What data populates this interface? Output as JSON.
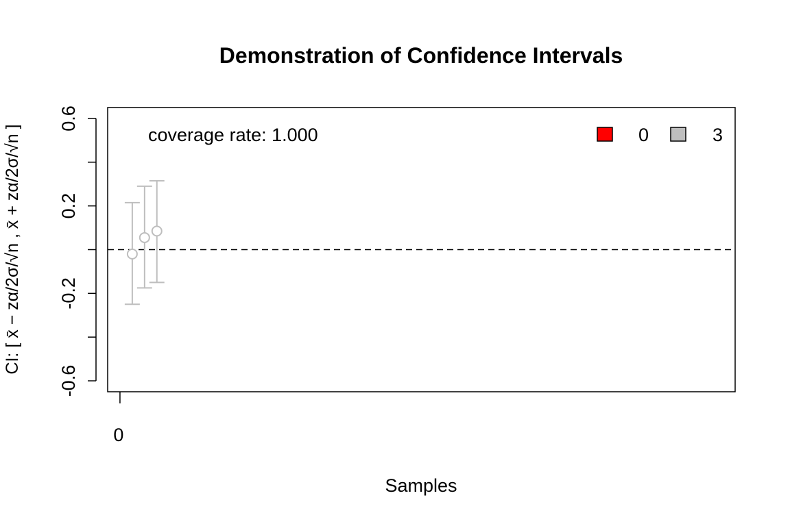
{
  "chart_data": {
    "type": "scatter",
    "title": "Demonstration of Confidence Intervals",
    "xlabel": "Samples",
    "ylabel": {
      "prefix": "CI: [",
      "lower": "x̄ − zα/2σ/√n",
      "separator": ",",
      "upper": "x̄ + zα/2σ/√n",
      "suffix": "]"
    },
    "xlim": [
      -1,
      50
    ],
    "ylim": [
      -0.65,
      0.65
    ],
    "x_ticks": [
      0
    ],
    "x_tick_labels": [
      "0"
    ],
    "y_ticks": [
      -0.6,
      -0.4,
      -0.2,
      0.0,
      0.2,
      0.4,
      0.6
    ],
    "y_tick_labels": [
      "-0.6",
      "",
      "-0.2",
      "",
      "0.2",
      "",
      "0.6"
    ],
    "reference_line": {
      "y": 0,
      "style": "dashed",
      "color": "#000000"
    },
    "annotation": "coverage rate: 1.000",
    "legend": {
      "placement": "top-right",
      "entries": [
        {
          "label": "0",
          "color": "#ff0000"
        },
        {
          "label": "3",
          "color": "#bebebe"
        }
      ]
    },
    "series": [
      {
        "color": "#bebebe",
        "points": [
          {
            "x": 1,
            "y": -0.02,
            "lower": -0.25,
            "upper": 0.215
          },
          {
            "x": 2,
            "y": 0.055,
            "lower": -0.175,
            "upper": 0.29
          },
          {
            "x": 3,
            "y": 0.085,
            "lower": -0.15,
            "upper": 0.315
          }
        ]
      }
    ]
  }
}
